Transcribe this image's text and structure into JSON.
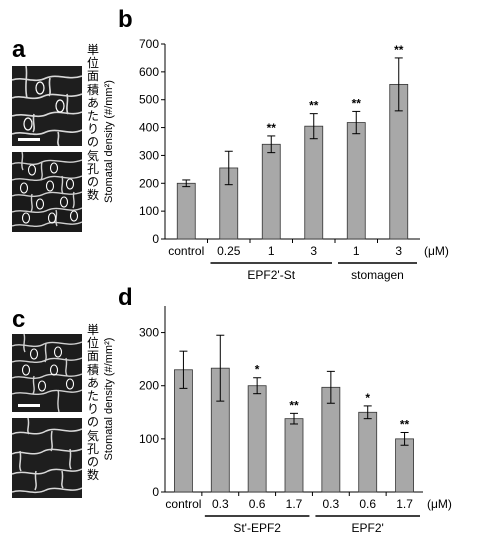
{
  "panels": {
    "a": "a",
    "b": "b",
    "c": "c",
    "d": "d"
  },
  "side_label": "単位面積あたりの気孔の数",
  "side_label_chars": [
    "単",
    "位",
    "面",
    "積",
    "あ",
    "た",
    "り",
    "の",
    "気",
    "孔",
    "の",
    "数"
  ],
  "chart_data": [
    {
      "type": "bar",
      "panel": "b",
      "ylabel": "Stomatal density (#/mm²)",
      "ylim": [
        0,
        700
      ],
      "yticks": [
        0,
        100,
        200,
        300,
        400,
        500,
        600,
        700
      ],
      "unit_label": "(μM)",
      "categories": [
        "control",
        "0.25",
        "1",
        "3",
        "1",
        "3"
      ],
      "values": [
        200,
        255,
        340,
        405,
        418,
        555
      ],
      "errors": [
        12,
        60,
        30,
        45,
        40,
        95
      ],
      "significance": [
        "",
        "",
        "**",
        "**",
        "**",
        "**"
      ],
      "groups": [
        {
          "label": "EPF2'-St",
          "from": 1,
          "to": 3
        },
        {
          "label": "stomagen",
          "from": 4,
          "to": 5
        }
      ]
    },
    {
      "type": "bar",
      "panel": "d",
      "ylabel": "Stomatal density (#/mm²)",
      "ylim": [
        0,
        350
      ],
      "yticks": [
        0,
        100,
        200,
        300
      ],
      "unit_label": "(μM)",
      "categories": [
        "control",
        "0.3",
        "0.6",
        "1.7",
        "0.3",
        "0.6",
        "1.7"
      ],
      "values": [
        230,
        233,
        200,
        138,
        197,
        150,
        100
      ],
      "errors": [
        35,
        62,
        15,
        10,
        30,
        12,
        12
      ],
      "significance": [
        "",
        "",
        "*",
        "**",
        "",
        "*",
        "**"
      ],
      "groups": [
        {
          "label": "St'-EPF2",
          "from": 1,
          "to": 3
        },
        {
          "label": "EPF2'",
          "from": 4,
          "to": 6
        }
      ]
    }
  ]
}
